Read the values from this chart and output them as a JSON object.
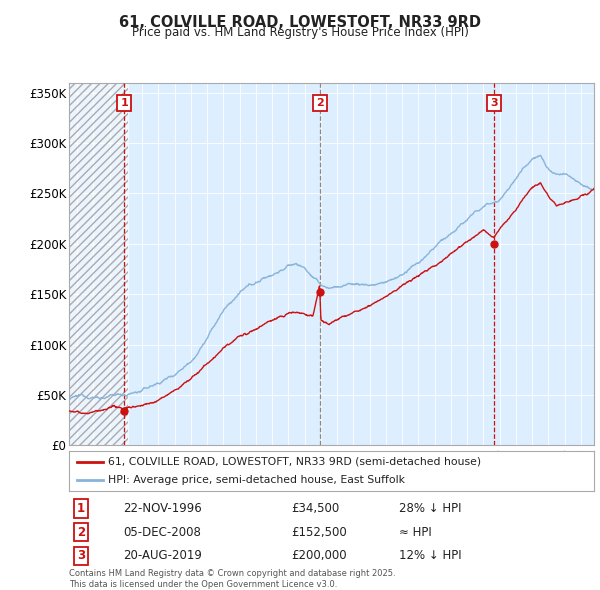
{
  "title": "61, COLVILLE ROAD, LOWESTOFT, NR33 9RD",
  "subtitle": "Price paid vs. HM Land Registry's House Price Index (HPI)",
  "ylabel_ticks": [
    "£0",
    "£50K",
    "£100K",
    "£150K",
    "£200K",
    "£250K",
    "£300K",
    "£350K"
  ],
  "ytick_values": [
    0,
    50000,
    100000,
    150000,
    200000,
    250000,
    300000,
    350000
  ],
  "ylim": [
    0,
    360000
  ],
  "xlim_start": 1993.5,
  "xlim_end": 2025.8,
  "sale1_date": 1996.9,
  "sale1_price": 34500,
  "sale2_date": 2008.92,
  "sale2_price": 152500,
  "sale3_date": 2019.64,
  "sale3_price": 200000,
  "hpi_color": "#89b4d9",
  "price_color": "#cc1111",
  "marker_box_color": "#cc1111",
  "vline1_color": "#cc1111",
  "vline2_color": "#888888",
  "vline3_color": "#cc1111",
  "background_color": "#ffffff",
  "plot_bg_color": "#ddeeff",
  "legend_label_price": "61, COLVILLE ROAD, LOWESTOFT, NR33 9RD (semi-detached house)",
  "legend_label_hpi": "HPI: Average price, semi-detached house, East Suffolk",
  "table_entries": [
    {
      "num": "1",
      "date": "22-NOV-1996",
      "price": "£34,500",
      "note": "28% ↓ HPI"
    },
    {
      "num": "2",
      "date": "05-DEC-2008",
      "price": "£152,500",
      "note": "≈ HPI"
    },
    {
      "num": "3",
      "date": "20-AUG-2019",
      "price": "£200,000",
      "note": "12% ↓ HPI"
    }
  ],
  "footer": "Contains HM Land Registry data © Crown copyright and database right 2025.\nThis data is licensed under the Open Government Licence v3.0."
}
